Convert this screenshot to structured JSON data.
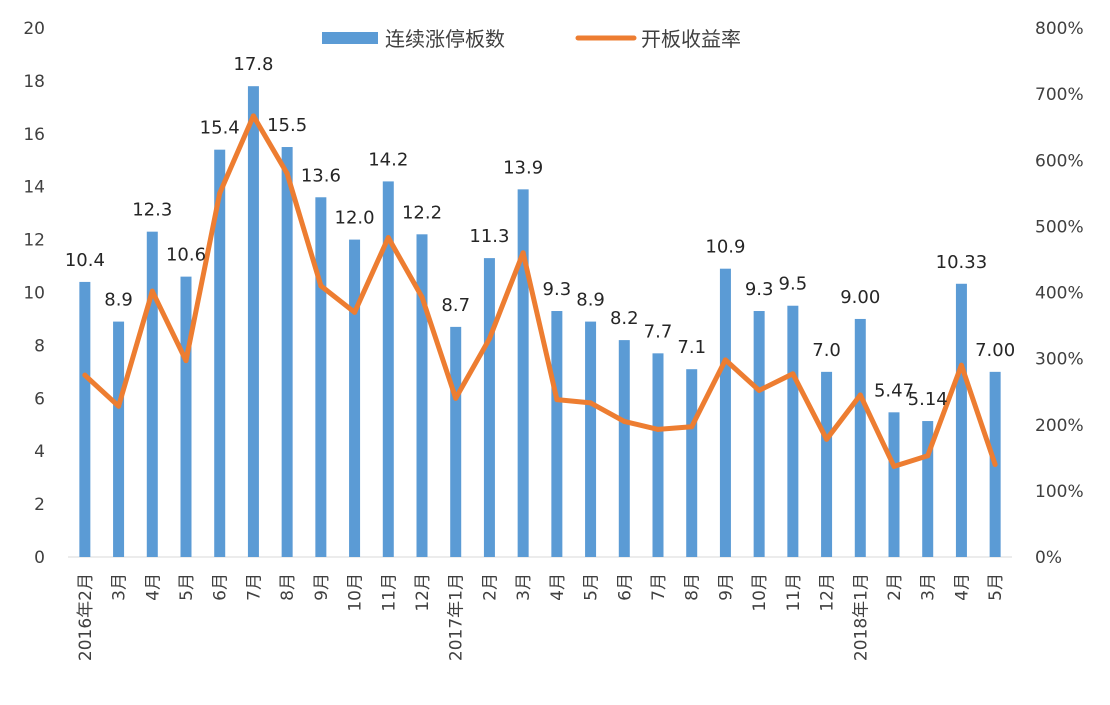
{
  "chart_data": {
    "type": "bar",
    "categories": [
      "2016年2月",
      "3月",
      "4月",
      "5月",
      "6月",
      "7月",
      "8月",
      "9月",
      "10月",
      "11月",
      "12月",
      "2017年1月",
      "2月",
      "3月",
      "4月",
      "5月",
      "6月",
      "7月",
      "8月",
      "9月",
      "10月",
      "11月",
      "12月",
      "2018年1月",
      "2月",
      "3月",
      "4月",
      "5月"
    ],
    "series": [
      {
        "name": "连续涨停板数",
        "type": "bar",
        "axis": "left",
        "color": "#5B9BD5",
        "values": [
          10.4,
          8.9,
          12.3,
          10.6,
          15.4,
          17.8,
          15.5,
          13.6,
          12.0,
          14.2,
          12.2,
          8.7,
          11.3,
          13.9,
          9.3,
          8.9,
          8.2,
          7.7,
          7.1,
          10.9,
          9.3,
          9.5,
          7.0,
          9.0,
          5.47,
          5.14,
          10.33,
          7.0
        ],
        "labels": [
          "10.4",
          "8.9",
          "12.3",
          "10.6",
          "15.4",
          "17.8",
          "15.5",
          "13.6",
          "12.0",
          "14.2",
          "12.2",
          "8.7",
          "11.3",
          "13.9",
          "9.3",
          "8.9",
          "8.2",
          "7.7",
          "7.1",
          "10.9",
          "9.3",
          "9.5",
          "7.0",
          "9.00",
          "5.47",
          "5.14",
          "10.33",
          "7.00"
        ]
      },
      {
        "name": "开板收益率",
        "type": "line",
        "axis": "right",
        "color": "#ED7D31",
        "values": [
          275,
          228,
          402,
          297,
          550,
          667,
          580,
          410,
          370,
          483,
          393,
          240,
          330,
          460,
          238,
          233,
          205,
          193,
          197,
          298,
          252,
          277,
          178,
          245,
          137,
          153,
          290,
          140
        ]
      }
    ],
    "y_left": {
      "min": 0,
      "max": 20,
      "step": 2,
      "ticks": [
        "0",
        "2",
        "4",
        "6",
        "8",
        "10",
        "12",
        "14",
        "16",
        "18",
        "20"
      ]
    },
    "y_right": {
      "min": 0,
      "max": 800,
      "step": 100,
      "ticks": [
        "0%",
        "100%",
        "200%",
        "300%",
        "400%",
        "500%",
        "600%",
        "700%",
        "800%"
      ]
    },
    "legend": {
      "position": "top-center"
    },
    "grid": false
  }
}
